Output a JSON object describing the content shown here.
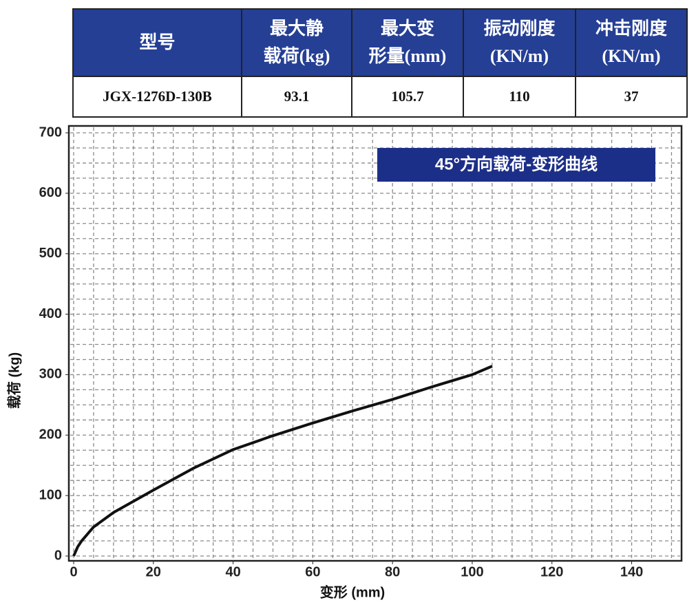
{
  "table": {
    "header": [
      [
        "型号"
      ],
      [
        "最大静",
        "载荷(kg)"
      ],
      [
        "最大变",
        "形量(mm)"
      ],
      [
        "振动刚度",
        "(KN/m)"
      ],
      [
        "冲击刚度",
        "(KN/m)"
      ]
    ],
    "rows": [
      [
        "JGX-1276D-130B",
        "93.1",
        "105.7",
        "110",
        "37"
      ]
    ]
  },
  "chart_data": {
    "type": "line",
    "title": "45°方向载荷-变形曲线",
    "x_label": "变形 (mm)",
    "y_label": "载荷 (kg)",
    "x": [
      0,
      1,
      2,
      5,
      10,
      20,
      30,
      40,
      50,
      60,
      70,
      80,
      90,
      100,
      105
    ],
    "series": [
      {
        "color": "#111111",
        "values": [
          0,
          15,
          25,
          48,
          72,
          109,
          145,
          176,
          199,
          220,
          240,
          259,
          280,
          300,
          314
        ]
      }
    ],
    "xlim": [
      0,
      152
    ],
    "ylim": [
      0,
      700
    ],
    "xticks": [
      0,
      20,
      40,
      60,
      80,
      100,
      120,
      140
    ],
    "yticks": [
      0,
      100,
      200,
      300,
      400,
      500,
      600,
      700
    ],
    "minor_xticks": [
      0,
      5,
      10,
      15,
      20,
      25,
      30,
      35,
      40,
      45,
      50,
      55,
      60,
      65,
      70,
      75,
      80,
      85,
      90,
      95,
      100,
      105,
      110,
      115,
      120,
      125,
      130,
      135,
      140,
      145,
      150
    ],
    "minor_yticks": [
      0,
      25,
      50,
      75,
      100,
      125,
      150,
      175,
      200,
      225,
      250,
      275,
      300,
      325,
      350,
      375,
      400,
      425,
      450,
      475,
      500,
      525,
      550,
      575,
      600,
      625,
      650,
      675,
      700
    ],
    "grid": true
  }
}
